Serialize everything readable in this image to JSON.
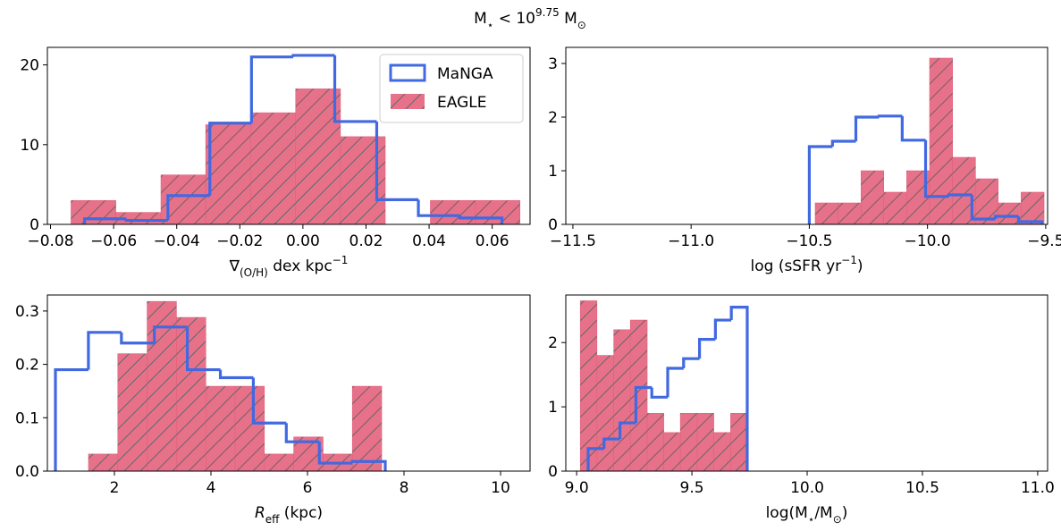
{
  "title": [
    {
      "text": "M"
    },
    {
      "text": "⋆",
      "shift": "sub"
    },
    {
      "text": " < 10"
    },
    {
      "text": "9.75",
      "shift": "sup"
    },
    {
      "text": " M"
    },
    {
      "text": "⊙",
      "shift": "sub"
    }
  ],
  "chart_data": [
    {
      "type": "histogram",
      "legend": "upper right",
      "xlabel": [
        {
          "text": "∇"
        },
        {
          "text": "(O/H)",
          "shift": "sub"
        },
        {
          "text": " dex kpc"
        },
        {
          "text": "−1",
          "shift": "sup"
        }
      ],
      "xlim": [
        -0.081,
        0.072
      ],
      "ylim": [
        0,
        22.2
      ],
      "xticks": [
        {
          "value": -0.08,
          "label": "−0.08"
        },
        {
          "value": -0.06,
          "label": "−0.06"
        },
        {
          "value": -0.04,
          "label": "−0.04"
        },
        {
          "value": -0.02,
          "label": "−0.02"
        },
        {
          "value": 0,
          "label": "0.00"
        },
        {
          "value": 0.02,
          "label": "0.02"
        },
        {
          "value": 0.04,
          "label": "0.04"
        },
        {
          "value": 0.06,
          "label": "0.06"
        }
      ],
      "yticks": [
        0,
        10,
        20
      ],
      "series": [
        {
          "name": "MaNGA",
          "style": "step",
          "color": "#4169e1",
          "bins": [
            -0.0692,
            -0.056,
            -0.0428,
            -0.0295,
            -0.0163,
            -0.0031,
            0.0101,
            0.0234,
            0.0366,
            0.0498,
            0.0631
          ],
          "values": [
            0.7,
            0.5,
            3.6,
            12.7,
            21,
            21.2,
            12.9,
            3.1,
            1.1,
            0.8
          ]
        },
        {
          "name": "EAGLE",
          "style": "bar",
          "color": "#e8718a",
          "hatch_color": "#666666",
          "bins": [
            -0.0735,
            -0.0593,
            -0.045,
            -0.0308,
            -0.0166,
            -0.0023,
            0.0119,
            0.0261,
            0.0404,
            0.0546,
            0.0688
          ],
          "values": [
            3,
            1.5,
            6.2,
            12.5,
            14,
            17,
            11,
            0,
            3,
            3
          ]
        }
      ]
    },
    {
      "type": "histogram",
      "xlabel": [
        {
          "text": "log (sSFR yr"
        },
        {
          "text": "−1",
          "shift": "sup"
        },
        {
          "text": ")"
        }
      ],
      "xlim": [
        -11.53,
        -9.492
      ],
      "ylim": [
        0,
        3.3
      ],
      "xticks": [
        {
          "value": -11.5,
          "label": "−11.5"
        },
        {
          "value": -11,
          "label": "−11.0"
        },
        {
          "value": -10.5,
          "label": "−10.5"
        },
        {
          "value": -10,
          "label": "−10.0"
        },
        {
          "value": -9.5,
          "label": "−9.5"
        }
      ],
      "yticks": [
        0,
        1,
        2,
        3
      ],
      "series": [
        {
          "style": "step",
          "color": "#4169e1",
          "bins": [
            -10.5,
            -10.402,
            -10.303,
            -10.205,
            -10.107,
            -10.008,
            -9.91,
            -9.812,
            -9.713,
            -9.615,
            -9.516
          ],
          "values": [
            1.45,
            1.55,
            2.0,
            2.02,
            1.57,
            0.52,
            0.55,
            0.1,
            0.15,
            0.05
          ]
        },
        {
          "style": "bar",
          "color": "#e8718a",
          "hatch_color": "#666666",
          "bins": [
            -10.475,
            -10.378,
            -10.281,
            -10.185,
            -10.088,
            -9.991,
            -9.894,
            -9.797,
            -9.701,
            -9.604,
            -9.507
          ],
          "values": [
            0.4,
            0.4,
            1.0,
            0.6,
            1.0,
            3.1,
            1.25,
            0.85,
            0.4,
            0.6
          ]
        }
      ]
    },
    {
      "type": "histogram",
      "xlabel": [
        {
          "text": "R",
          "style": "italic"
        },
        {
          "text": "eff",
          "shift": "sub"
        },
        {
          "text": " (kpc)"
        }
      ],
      "xlim": [
        0.611,
        10.611
      ],
      "ylim": [
        0,
        0.33
      ],
      "xticks": [
        2,
        4,
        6,
        8,
        10
      ],
      "yticks": [
        {
          "value": 0,
          "label": "0.0"
        },
        0.1,
        0.2,
        0.3
      ],
      "series": [
        {
          "style": "step",
          "color": "#4169e1",
          "bins": [
            0.778,
            1.461,
            2.145,
            2.828,
            3.511,
            4.195,
            4.878,
            5.561,
            6.245,
            6.928,
            7.611
          ],
          "values": [
            0.19,
            0.26,
            0.24,
            0.27,
            0.19,
            0.175,
            0.09,
            0.055,
            0.015,
            0.018
          ]
        },
        {
          "style": "bar",
          "color": "#e8718a",
          "hatch_color": "#666666",
          "bins": [
            1.463,
            2.07,
            2.678,
            3.285,
            3.893,
            4.5,
            5.107,
            5.715,
            6.322,
            6.93,
            7.537
          ],
          "values": [
            0.032,
            0.22,
            0.318,
            0.288,
            0.159,
            0.159,
            0.032,
            0.064,
            0.032,
            0.159
          ]
        }
      ]
    },
    {
      "type": "histogram",
      "xlabel": [
        {
          "text": "log(M"
        },
        {
          "text": "⋆",
          "shift": "sub"
        },
        {
          "text": "/M"
        },
        {
          "text": "⊙",
          "shift": "sub"
        },
        {
          "text": ")"
        }
      ],
      "xlim": [
        8.953,
        11.043
      ],
      "ylim": [
        0,
        2.74
      ],
      "xticks": [
        {
          "value": 9,
          "label": "9.0"
        },
        9.5,
        {
          "value": 10,
          "label": "10.0"
        },
        10.5,
        {
          "value": 11,
          "label": "11.0"
        }
      ],
      "yticks": [
        0,
        1,
        2
      ],
      "series": [
        {
          "style": "step",
          "color": "#4169e1",
          "bins": [
            9.05,
            9.119,
            9.188,
            9.257,
            9.326,
            9.395,
            9.464,
            9.533,
            9.602,
            9.671,
            9.74
          ],
          "values": [
            0.35,
            0.5,
            0.75,
            1.3,
            1.15,
            1.6,
            1.75,
            2.05,
            2.35,
            2.55
          ]
        },
        {
          "style": "bar",
          "color": "#e8718a",
          "hatch_color": "#666666",
          "bins": [
            9.016,
            9.088,
            9.161,
            9.233,
            9.306,
            9.378,
            9.45,
            9.523,
            9.595,
            9.668,
            9.74
          ],
          "values": [
            2.65,
            1.8,
            2.2,
            2.35,
            0.9,
            0.6,
            0.9,
            0.9,
            0.6,
            0.9
          ]
        }
      ]
    }
  ]
}
